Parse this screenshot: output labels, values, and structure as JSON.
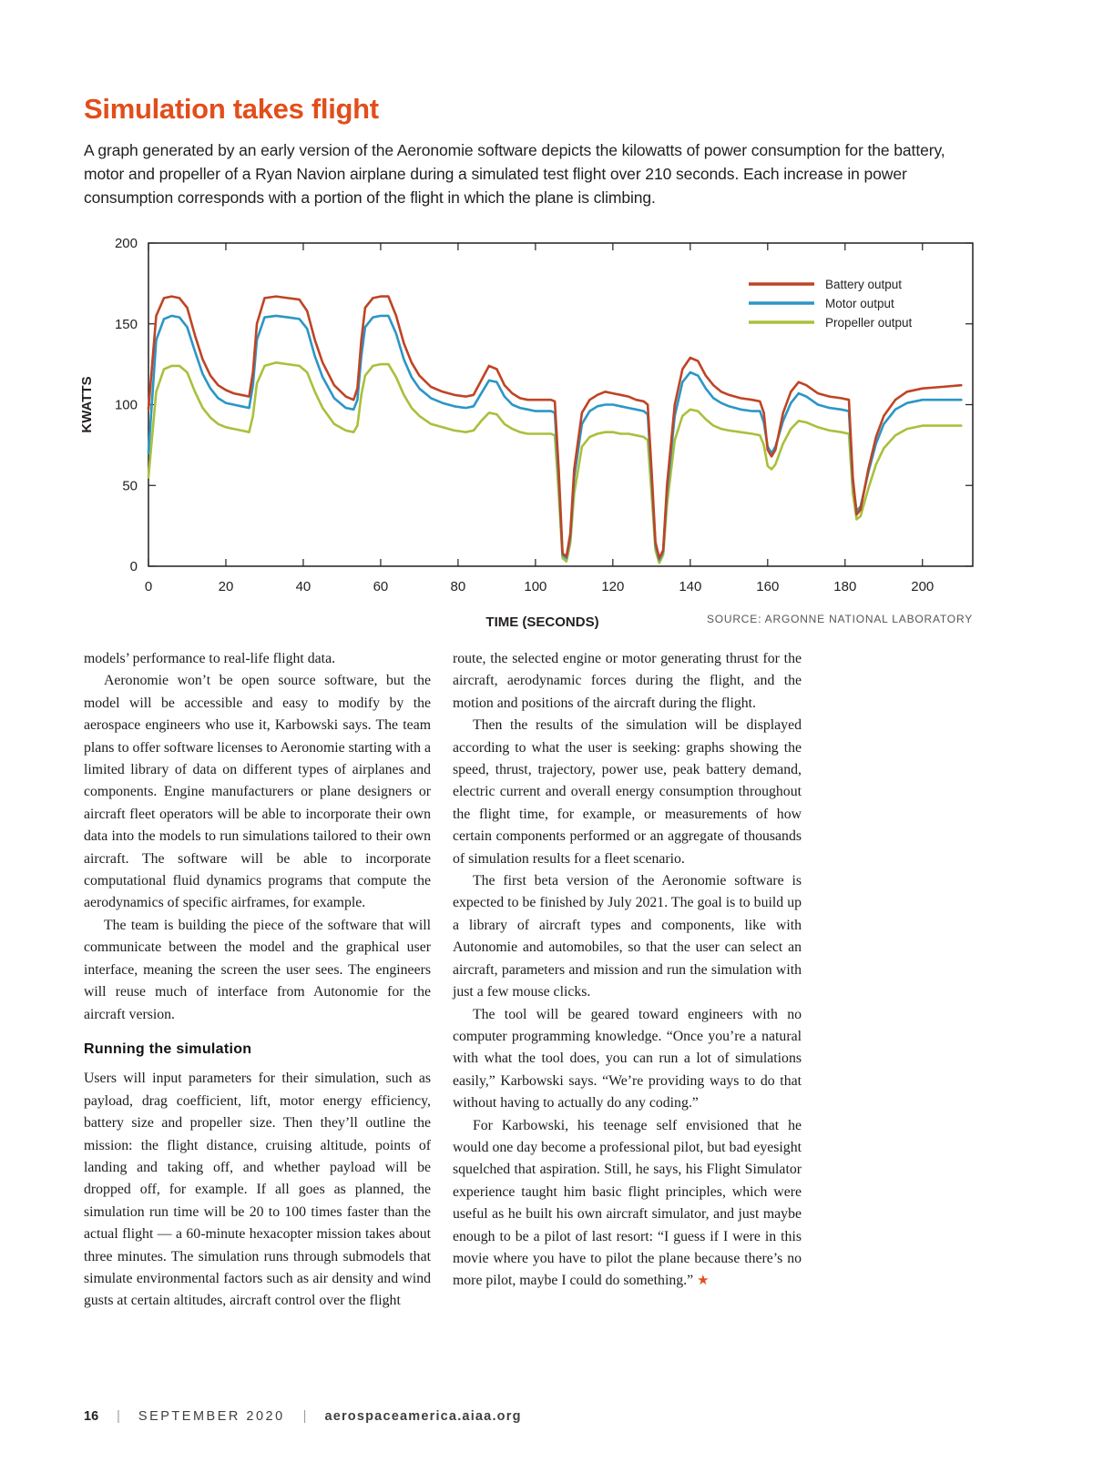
{
  "header": {
    "title": "Simulation takes flight",
    "intro": "A graph generated by an early version of the Aeronomie software depicts the kilowatts of power consumption for the battery, motor and propeller of a Ryan Navion airplane during a simulated test flight over 210 seconds. Each increase in power consumption corresponds with a portion of the flight in which the plane is climbing."
  },
  "chart_data": {
    "type": "line",
    "title": "",
    "xlabel": "TIME (SECONDS)",
    "ylabel": "KWATTS",
    "source": "SOURCE: ARGONNE NATIONAL LABORATORY",
    "xlim": [
      0,
      213
    ],
    "ylim": [
      0,
      200
    ],
    "x_ticks": [
      0,
      20,
      40,
      60,
      80,
      100,
      120,
      140,
      160,
      180,
      200
    ],
    "y_ticks": [
      0,
      50,
      100,
      150,
      200
    ],
    "grid": false,
    "legend_position": "top-right",
    "x": [
      0,
      2,
      4,
      6,
      8,
      10,
      12,
      14,
      16,
      18,
      20,
      22,
      24,
      26,
      27,
      28,
      30,
      33,
      36,
      39,
      41,
      43,
      45,
      48,
      51,
      53,
      54,
      55,
      56,
      58,
      60,
      62,
      64,
      66,
      68,
      70,
      73,
      76,
      79,
      82,
      84,
      86,
      88,
      90,
      92,
      94,
      96,
      98,
      100,
      102,
      104,
      105,
      106,
      107,
      108,
      109,
      110,
      112,
      114,
      116,
      118,
      120,
      122,
      124,
      126,
      128,
      129,
      130,
      131,
      132,
      133,
      134,
      136,
      138,
      140,
      142,
      144,
      146,
      148,
      150,
      153,
      156,
      158,
      159,
      160,
      161,
      162,
      164,
      166,
      168,
      170,
      173,
      176,
      179,
      181,
      182,
      183,
      184,
      186,
      188,
      190,
      193,
      196,
      200,
      205,
      210
    ],
    "series": [
      {
        "name": "Battery output",
        "color": "#bf4424",
        "values": [
          97,
          155,
          166,
          167,
          166,
          160,
          143,
          128,
          118,
          112,
          109,
          107,
          106,
          105,
          120,
          150,
          166,
          167,
          166,
          165,
          158,
          140,
          126,
          112,
          105,
          103,
          110,
          140,
          160,
          166,
          167,
          167,
          155,
          138,
          126,
          118,
          111,
          108,
          106,
          105,
          106,
          115,
          124,
          122,
          112,
          107,
          104,
          103,
          103,
          103,
          103,
          102,
          60,
          8,
          6,
          20,
          60,
          95,
          103,
          106,
          108,
          107,
          106,
          105,
          103,
          102,
          100,
          60,
          15,
          5,
          10,
          50,
          100,
          122,
          129,
          127,
          118,
          112,
          108,
          106,
          104,
          103,
          102,
          95,
          72,
          68,
          72,
          95,
          108,
          114,
          112,
          107,
          105,
          104,
          103,
          55,
          32,
          35,
          60,
          80,
          93,
          103,
          108,
          110,
          111,
          112
        ]
      },
      {
        "name": "Motor output",
        "color": "#2b96c6",
        "values": [
          70,
          140,
          153,
          155,
          154,
          148,
          133,
          119,
          110,
          104,
          101,
          100,
          99,
          98,
          112,
          140,
          154,
          155,
          154,
          153,
          147,
          130,
          117,
          104,
          98,
          97,
          103,
          130,
          148,
          154,
          155,
          155,
          144,
          128,
          117,
          110,
          104,
          101,
          99,
          98,
          99,
          107,
          115,
          114,
          105,
          100,
          98,
          97,
          96,
          96,
          96,
          95,
          55,
          7,
          5,
          18,
          55,
          88,
          96,
          99,
          100,
          100,
          99,
          98,
          97,
          96,
          94,
          56,
          13,
          4,
          9,
          46,
          93,
          114,
          120,
          118,
          110,
          104,
          101,
          99,
          97,
          96,
          96,
          89,
          74,
          70,
          74,
          90,
          101,
          107,
          105,
          100,
          98,
          97,
          96,
          52,
          34,
          37,
          58,
          76,
          88,
          97,
          101,
          103,
          103,
          103
        ]
      },
      {
        "name": "Propeller output",
        "color": "#a9c03c",
        "values": [
          55,
          108,
          122,
          124,
          124,
          120,
          108,
          98,
          92,
          88,
          86,
          85,
          84,
          83,
          93,
          113,
          124,
          126,
          125,
          124,
          120,
          108,
          98,
          88,
          84,
          83,
          87,
          106,
          118,
          124,
          125,
          125,
          117,
          106,
          98,
          93,
          88,
          86,
          84,
          83,
          84,
          90,
          95,
          94,
          88,
          85,
          83,
          82,
          82,
          82,
          82,
          81,
          45,
          5,
          3,
          14,
          45,
          74,
          80,
          82,
          83,
          83,
          82,
          82,
          81,
          80,
          78,
          45,
          10,
          2,
          7,
          38,
          78,
          93,
          97,
          96,
          91,
          87,
          85,
          84,
          83,
          82,
          81,
          75,
          62,
          60,
          63,
          76,
          85,
          90,
          89,
          86,
          84,
          83,
          82,
          45,
          29,
          31,
          48,
          63,
          73,
          81,
          85,
          87,
          87,
          87
        ]
      }
    ]
  },
  "columns": [
    {
      "heading": "Running the simulation",
      "paragraphs": [
        "models’ performance to real-life flight data.",
        "Aeronomie won’t be open source software, but the model will be accessible and easy to modify by the aerospace engineers who use it, Karbowski says. The team plans to offer software licenses to Aeronomie starting with a limited library of data on different types of airplanes and components. Engine manufacturers or plane designers or aircraft fleet operators will be able to incorporate their own data into the models to run simulations tailored to their own aircraft. The software will be able to incorporate computational fluid dynamics programs that compute the aerodynamics of specific airframes, for example.",
        "The team is building the piece of the software that will communicate between the model and the graphical user interface, meaning the screen the user sees. The engineers will reuse much of interface from Autonomie for the aircraft version.",
        "Users will input parameters for their simulation, such as payload, drag coefficient, lift, motor energy efficiency, battery size and propeller size. Then they’ll outline the mission: the flight distance, cruising altitude, points of landing and taking off, and whether payload will be dropped off, for example. If all goes as planned, the simulation run time will be 20 to 100 times faster than the actual flight — a 60-minute hexacopter mission takes about three minutes. The simulation runs through submodels that simulate environmental factors such as air density and wind gusts at certain altitudes, aircraft control over the flight"
      ]
    },
    {
      "end_star": "★",
      "paragraphs": [
        "route, the selected engine or motor generating thrust for the aircraft, aerodynamic forces during the flight, and the motion and positions of the aircraft during the flight.",
        "Then the results of the simulation will be displayed according to what the user is seeking: graphs showing the speed, thrust, trajectory, power use, peak battery demand, electric current and overall energy consumption throughout the flight time, for example, or measurements of how certain components performed or an aggregate of thousands of simulation results for a fleet scenario.",
        "The first beta version of the Aeronomie software is expected to be finished by July 2021. The goal is to build up a library of aircraft types and components, like with Autonomie and automobiles, so that the user can select an aircraft, parameters and mission and run the simulation with just a few mouse clicks.",
        "The tool will be geared toward engineers with no computer programming knowledge. “Once you’re a natural with what the tool does, you can run a lot of simulations easily,” Karbowski says. “We’re providing ways to do that without having to actually do any coding.”",
        "For Karbowski, his teenage self envisioned that he would one day become a professional pilot, but bad eyesight squelched that aspiration. Still, he says, his Flight Simulator experience taught him basic flight principles, which were useful as he built his own aircraft simulator, and just maybe enough to be a pilot of last resort: “I guess if I were in this movie where you have to pilot the plane because there’s no more pilot, maybe I could do something.”"
      ]
    }
  ],
  "footer": {
    "page_number": "16",
    "separator": "|",
    "issue": "SEPTEMBER 2020",
    "site": "aerospaceamerica.aiaa.org"
  }
}
